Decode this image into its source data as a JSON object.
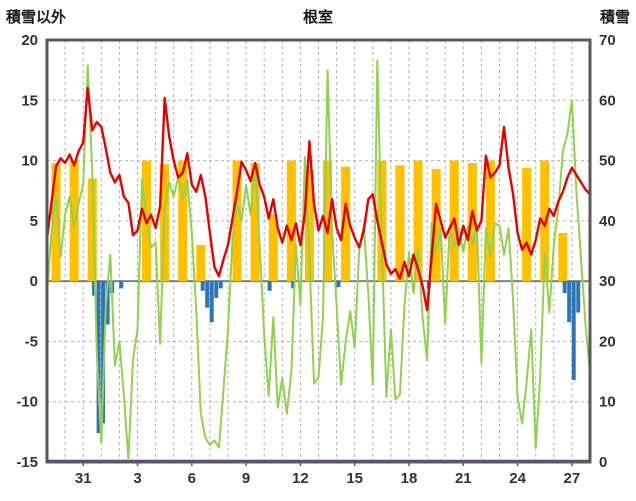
{
  "chart_data": {
    "type": "line",
    "title": "根室",
    "left_axis": {
      "label": "積雪以外",
      "min": -15,
      "max": 20,
      "ticks": [
        20,
        15,
        10,
        5,
        0,
        -5,
        -10,
        -15
      ]
    },
    "right_axis": {
      "label": "積雪",
      "min": 0,
      "max": 70,
      "ticks": [
        70,
        60,
        50,
        40,
        30,
        20,
        10,
        0
      ]
    },
    "x_axis": {
      "min": 0,
      "max": 30,
      "daily_gridlines": true,
      "tick_positions": [
        2,
        5,
        8,
        11,
        14,
        17,
        20,
        23,
        26,
        29
      ],
      "tick_labels": [
        "31",
        "3",
        "6",
        "9",
        "12",
        "15",
        "18",
        "21",
        "24",
        "27"
      ]
    },
    "colors": {
      "red_line": "#e60000",
      "green_line": "#92d050",
      "orange_bars": "#ffc000",
      "blue_bars": "#2e75b6",
      "purple_line": "#7030a0",
      "grid": "#b3b3b3",
      "zero_line": "#808080",
      "frame": "#595959",
      "tick_text": "#333333"
    },
    "series": {
      "red_line": {
        "color": "#e60000",
        "axis": "left",
        "x_start": 0,
        "x_step": 0.25,
        "values": [
          3.5,
          6.5,
          9.5,
          10.2,
          9.8,
          10.5,
          9.6,
          10.8,
          11.5,
          16,
          12.5,
          13.2,
          12.8,
          11,
          9,
          8.2,
          8.8,
          7,
          6.5,
          3.8,
          4.2,
          6,
          4.8,
          5.5,
          4.4,
          6.2,
          15.2,
          12,
          10,
          8.6,
          9,
          10.6,
          8,
          7.4,
          8.8,
          7,
          4,
          1.2,
          0.4,
          1.8,
          3,
          5.2,
          7.4,
          9.9,
          9.2,
          8.3,
          9.8,
          8,
          7,
          5.2,
          6.8,
          4.4,
          3.2,
          4.6,
          3.4,
          4.8,
          3,
          5.6,
          11.6,
          6.4,
          4.2,
          5.4,
          4,
          6.8,
          4.4,
          3.4,
          6.4,
          4.6,
          3.6,
          2.8,
          4.2,
          6.8,
          7.2,
          5,
          3.2,
          1.4,
          0.6,
          1,
          0.2,
          1.6,
          0.4,
          2.2,
          1,
          -0.4,
          -2.4,
          2,
          6.4,
          5,
          3.6,
          4.4,
          5.2,
          3,
          4.6,
          3.4,
          5.8,
          4.2,
          5,
          10.4,
          8.6,
          9,
          9.6,
          12.8,
          9.4,
          7.2,
          4,
          2.6,
          3.2,
          2.2,
          3.4,
          5.2,
          4.6,
          6,
          5.4,
          6.6,
          7.4,
          8.6,
          9.4,
          8.8,
          8.2,
          7.6,
          7.2
        ]
      },
      "green_line": {
        "color": "#92d050",
        "axis": "left",
        "x_start": 0,
        "x_step": 0.25,
        "values": [
          -1,
          4,
          7.2,
          2,
          5.5,
          7,
          4.5,
          6.5,
          8,
          17.9,
          9,
          -6,
          -13.4,
          -2,
          2.2,
          -7,
          -5,
          -9.5,
          -14.8,
          -6.5,
          -4,
          8.4,
          5,
          2.8,
          3.2,
          -5.2,
          6,
          8.2,
          7,
          8.6,
          6.8,
          8.4,
          4,
          -2.5,
          -11,
          -13,
          -13.6,
          -13.2,
          -13.8,
          -9,
          -4,
          3.5,
          6.5,
          5,
          8,
          5.5,
          9.8,
          3,
          -4.5,
          -9.5,
          -3,
          -10.5,
          -8,
          -11,
          -7.5,
          3,
          -2,
          10.3,
          2,
          -8.5,
          -8,
          -3,
          17.5,
          4,
          -2,
          -8.6,
          -5,
          -2.5,
          -5.5,
          2.6,
          4.6,
          -1,
          -8.6,
          18.3,
          3,
          -9.6,
          -4,
          -9.8,
          -9.4,
          -2,
          2.4,
          -1,
          2.6,
          -3,
          -6.6,
          4.8,
          2.4,
          4.4,
          -3.6,
          4.6,
          2.8,
          4.4,
          2.4,
          4.6,
          3,
          4.8,
          -6.8,
          4.4,
          2,
          4.8,
          4.6,
          2.2,
          4.4,
          -1.6,
          -9.6,
          -11.8,
          -8.4,
          -4,
          -13.8,
          -8,
          2.4,
          -2.6,
          3,
          6,
          10.8,
          12.2,
          15,
          7.4,
          2,
          -3.6,
          -7.6
        ]
      },
      "orange_bars": {
        "color": "#ffc000",
        "axis": "left",
        "bar_width_days": 0.5,
        "day_values": [
          9.8,
          10,
          8.5,
          0,
          0,
          10,
          9.7,
          10,
          3,
          0,
          10,
          9.8,
          5.5,
          10,
          9.2,
          10,
          9.5,
          0,
          10,
          9.6,
          10,
          9.3,
          10,
          9.8,
          10,
          0,
          9.4,
          10,
          4,
          0
        ]
      },
      "blue_bars": {
        "color": "#2e75b6",
        "axis": "left",
        "bar_width_days": 0.22,
        "events": [
          [
            2.6,
            -1.2
          ],
          [
            2.85,
            -12.6
          ],
          [
            3.1,
            -11.8
          ],
          [
            3.35,
            -3.6
          ],
          [
            3.6,
            -1
          ],
          [
            4.1,
            -0.6
          ],
          [
            8.6,
            -0.8
          ],
          [
            8.85,
            -2.2
          ],
          [
            9.1,
            -3.4
          ],
          [
            9.35,
            -1.4
          ],
          [
            9.6,
            -0.6
          ],
          [
            12.3,
            -0.8
          ],
          [
            13.6,
            -0.6
          ],
          [
            16.1,
            -0.5
          ],
          [
            21.1,
            -0.6
          ],
          [
            28.6,
            -1
          ],
          [
            28.85,
            -3.4
          ],
          [
            29.1,
            -8.2
          ],
          [
            29.35,
            -2.6
          ]
        ]
      },
      "purple_line": {
        "color": "#7030a0",
        "axis": "right",
        "constant_value": 0
      }
    }
  }
}
